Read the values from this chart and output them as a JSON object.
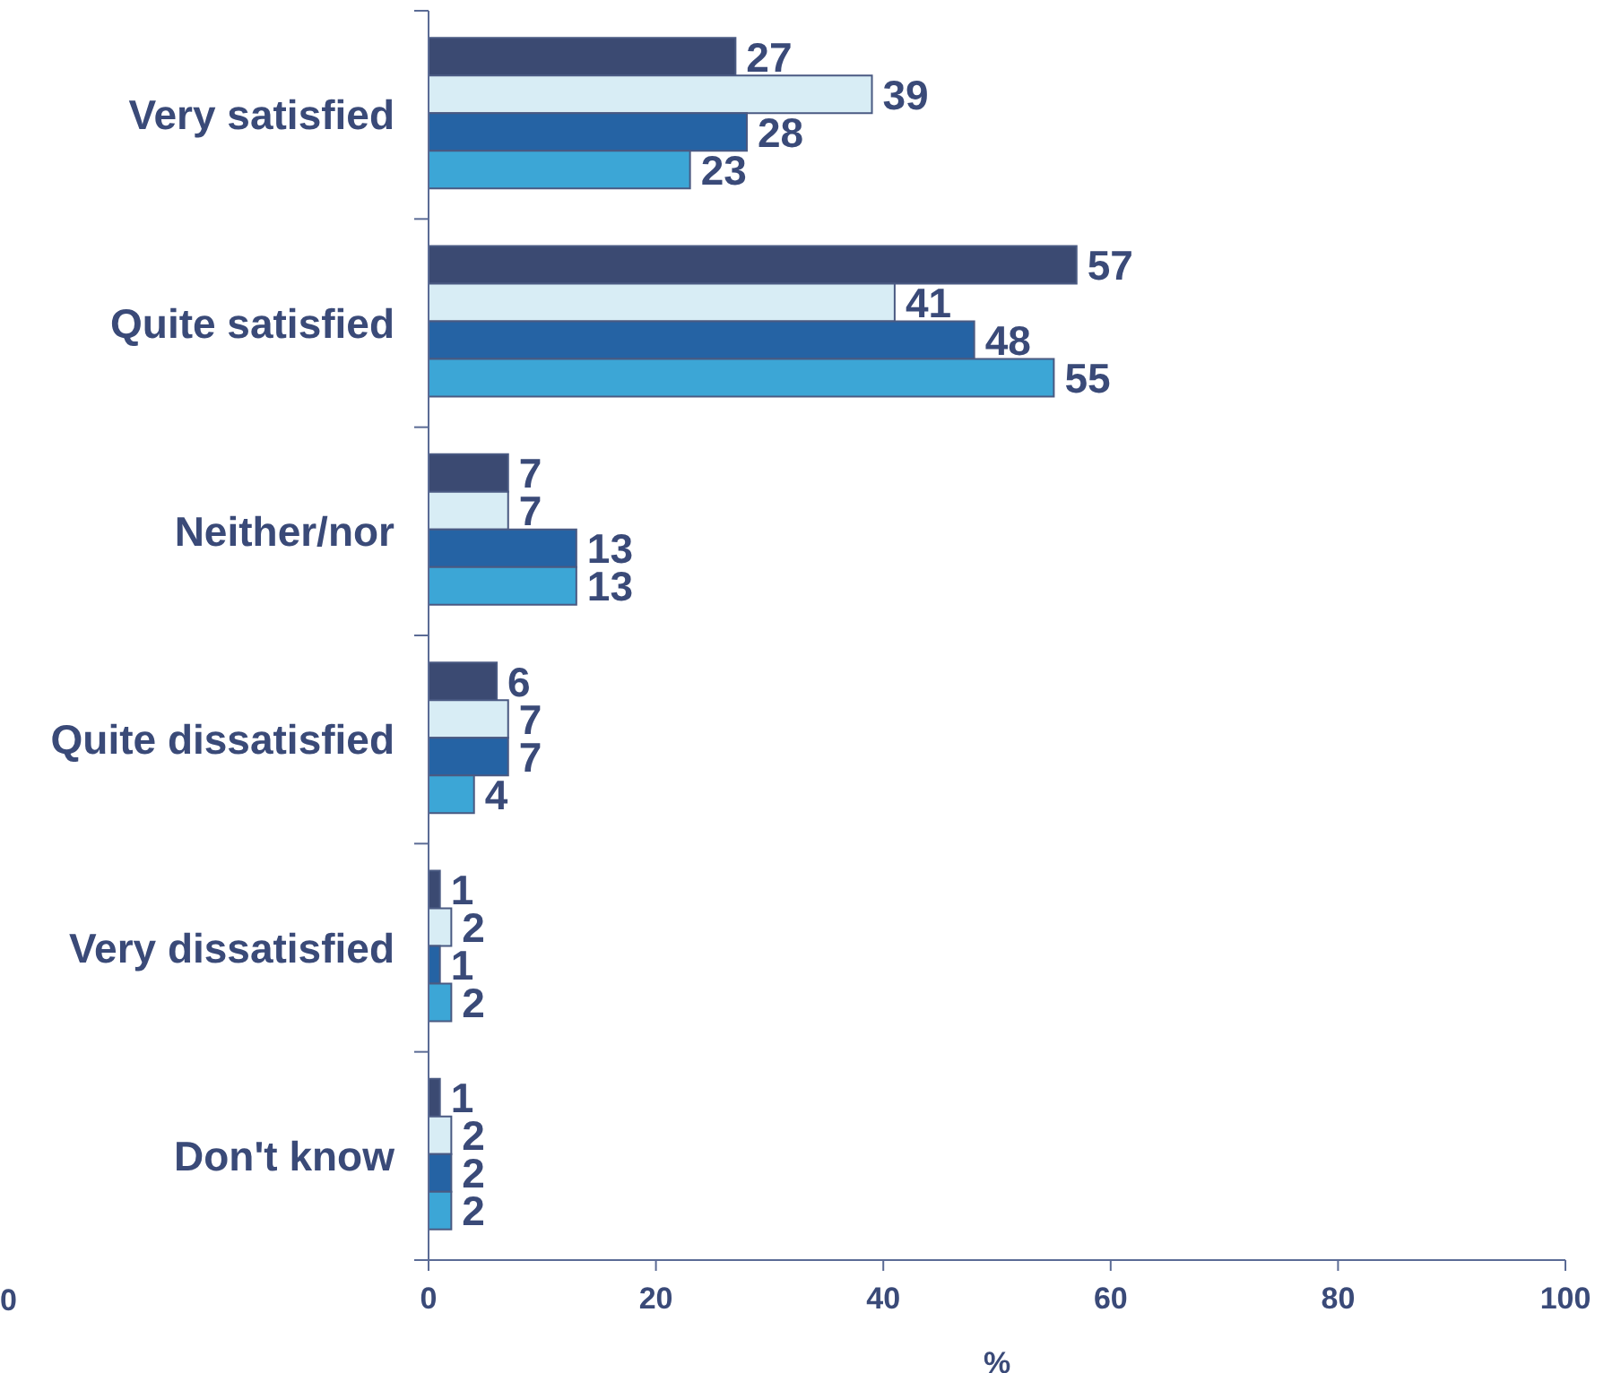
{
  "chart_data": {
    "type": "bar",
    "orientation": "horizontal",
    "categories": [
      "Very satisfied",
      "Quite satisfied",
      "Neither/nor",
      "Quite dissatisfied",
      "Very dissatisfied",
      "Don't know"
    ],
    "series": [
      {
        "color": "#3b4a72",
        "values": [
          27,
          57,
          7,
          6,
          1,
          1
        ]
      },
      {
        "color": "#d8edf5",
        "values": [
          39,
          41,
          7,
          7,
          2,
          2
        ]
      },
      {
        "color": "#2563a4",
        "values": [
          28,
          48,
          13,
          7,
          1,
          2
        ]
      },
      {
        "color": "#3ca6d6",
        "values": [
          23,
          55,
          13,
          4,
          2,
          2
        ]
      }
    ],
    "xlim": [
      0,
      100
    ],
    "xticks": [
      0,
      20,
      40,
      60,
      80,
      100
    ],
    "xlabel": "%",
    "data_labels": true,
    "annotations": [
      "0"
    ]
  }
}
